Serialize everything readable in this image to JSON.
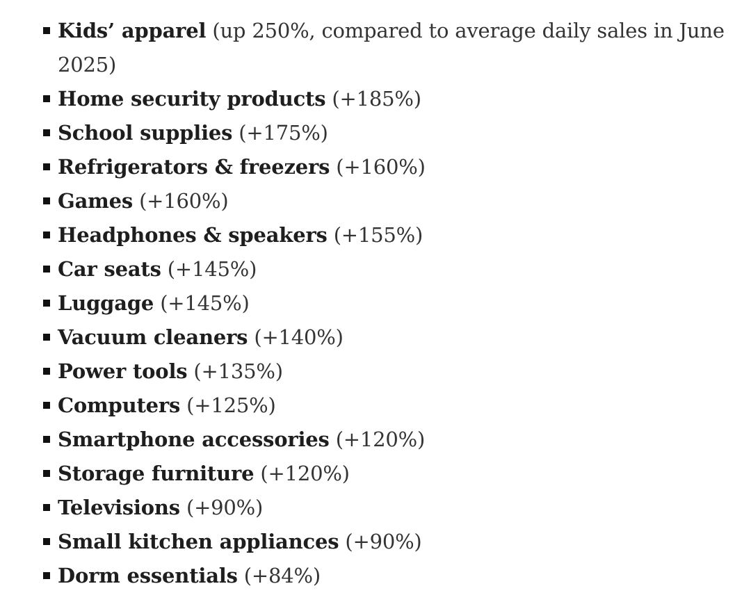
{
  "items": [
    {
      "name": "Kids’ apparel",
      "note": "(up 250%, compared to average daily sales in June 2025)"
    },
    {
      "name": "Home security products",
      "note": "(+185%)"
    },
    {
      "name": "School supplies",
      "note": "(+175%)"
    },
    {
      "name": "Refrigerators & freezers",
      "note": "(+160%)"
    },
    {
      "name": "Games",
      "note": "(+160%)"
    },
    {
      "name": "Headphones & speakers",
      "note": "(+155%)"
    },
    {
      "name": "Car seats",
      "note": "(+145%)"
    },
    {
      "name": "Luggage",
      "note": "(+145%)"
    },
    {
      "name": "Vacuum cleaners",
      "note": "(+140%)"
    },
    {
      "name": "Power tools",
      "note": "(+135%)"
    },
    {
      "name": "Computers",
      "note": "(+125%)"
    },
    {
      "name": "Smartphone accessories",
      "note": "(+120%)"
    },
    {
      "name": "Storage furniture",
      "note": "(+120%)"
    },
    {
      "name": "Televisions",
      "note": "(+90%)"
    },
    {
      "name": "Small kitchen appliances",
      "note": "(+90%)"
    },
    {
      "name": "Dorm essentials",
      "note": "(+84%)"
    }
  ]
}
